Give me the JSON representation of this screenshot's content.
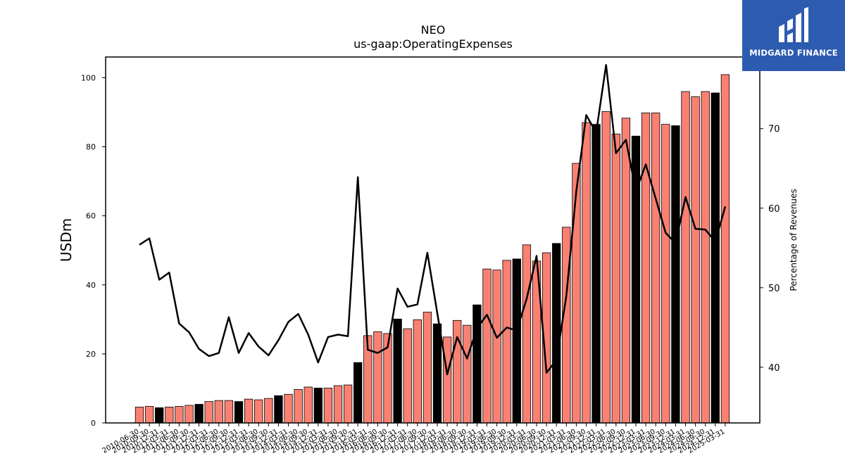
{
  "logo": {
    "text": "MIDGARD FINANCE"
  },
  "chart_data": {
    "type": "bar",
    "title": "NEO",
    "subtitle": "us-gaap:OperatingExpenses",
    "ylabel": "USDm",
    "ylabel_right": "Percentage of Revenues",
    "ylim": [
      0,
      106
    ],
    "y_ticks": [
      0,
      20,
      40,
      60,
      80,
      100
    ],
    "ylim_right": [
      33,
      79
    ],
    "y_ticks_right": [
      40,
      50,
      60,
      70
    ],
    "colors": {
      "quarterly_bar": "#fa8072",
      "annual_bar": "#000000",
      "line": "#000000"
    },
    "categories": [
      "2010-06-30",
      "2010-09-30",
      "2010-12-31",
      "2011-03-31",
      "2011-06-30",
      "2011-09-30",
      "2011-12-31",
      "2012-03-31",
      "2012-06-30",
      "2012-09-30",
      "2012-12-31",
      "2013-03-31",
      "2013-06-30",
      "2013-09-30",
      "2013-12-31",
      "2014-03-31",
      "2014-06-30",
      "2014-09-30",
      "2014-12-31",
      "2015-03-31",
      "2015-06-30",
      "2015-09-30",
      "2015-12-31",
      "2016-03-31",
      "2016-06-30",
      "2016-09-30",
      "2016-12-31",
      "2017-03-31",
      "2017-06-30",
      "2017-09-30",
      "2017-12-31",
      "2018-03-31",
      "2018-06-30",
      "2018-09-30",
      "2018-12-31",
      "2019-03-31",
      "2019-06-30",
      "2019-09-30",
      "2019-12-31",
      "2020-03-31",
      "2020-06-30",
      "2020-09-30",
      "2020-12-31",
      "2021-03-31",
      "2021-06-30",
      "2021-09-30",
      "2021-12-31",
      "2022-03-31",
      "2022-06-30",
      "2022-09-30",
      "2022-12-31",
      "2023-03-31",
      "2023-06-30",
      "2023-09-30",
      "2023-12-31",
      "2024-03-31",
      "2024-06-30",
      "2024-09-30",
      "2024-12-31",
      "2025-03-31"
    ],
    "series": [
      {
        "kind": "bar",
        "values": [
          4.6,
          4.8,
          4.4,
          4.6,
          4.8,
          5.1,
          5.4,
          6.2,
          6.5,
          6.5,
          6.2,
          6.9,
          6.7,
          7.1,
          7.9,
          8.3,
          9.7,
          10.4,
          10.1,
          10.1,
          10.8,
          11.0,
          17.5,
          25.3,
          26.4,
          25.9,
          30.1,
          27.3,
          29.9,
          32.1,
          28.7,
          24.9,
          29.7,
          28.3,
          34.2,
          44.6,
          44.3,
          47.1,
          47.5,
          51.6,
          46.9,
          49.3,
          52.0,
          56.7,
          75.2,
          87.0,
          86.5,
          90.2,
          83.7,
          88.3,
          83.1,
          89.8,
          89.8,
          86.5,
          86.1,
          96.0,
          94.5,
          96.0,
          95.6,
          100.9
        ],
        "annual": [
          false,
          false,
          true,
          false,
          false,
          false,
          true,
          false,
          false,
          false,
          true,
          false,
          false,
          false,
          true,
          false,
          false,
          false,
          true,
          false,
          false,
          false,
          true,
          false,
          false,
          false,
          true,
          false,
          false,
          false,
          true,
          false,
          false,
          false,
          true,
          false,
          false,
          false,
          true,
          false,
          false,
          false,
          true,
          false,
          false,
          false,
          true,
          false,
          false,
          false,
          true,
          false,
          false,
          false,
          true,
          false,
          false,
          false,
          true,
          false
        ]
      },
      {
        "kind": "line",
        "axis": "right",
        "values": [
          55.4,
          56.2,
          51.0,
          51.9,
          45.5,
          44.4,
          42.3,
          41.4,
          41.8,
          46.3,
          41.8,
          44.3,
          42.6,
          41.5,
          43.4,
          45.7,
          46.7,
          44.1,
          40.6,
          43.8,
          44.1,
          43.9,
          63.9,
          42.2,
          41.8,
          42.5,
          49.9,
          47.6,
          47.9,
          54.4,
          46.8,
          39.1,
          43.8,
          41.1,
          44.9,
          46.6,
          43.7,
          45.0,
          44.6,
          48.6,
          54.0,
          39.3,
          40.9,
          49.0,
          62.1,
          71.7,
          69.5,
          78.0,
          66.9,
          68.6,
          62.1,
          65.5,
          61.2,
          56.9,
          55.6,
          61.4,
          57.4,
          57.3,
          55.8,
          60.2
        ]
      }
    ],
    "grid": false,
    "legend": "none"
  }
}
